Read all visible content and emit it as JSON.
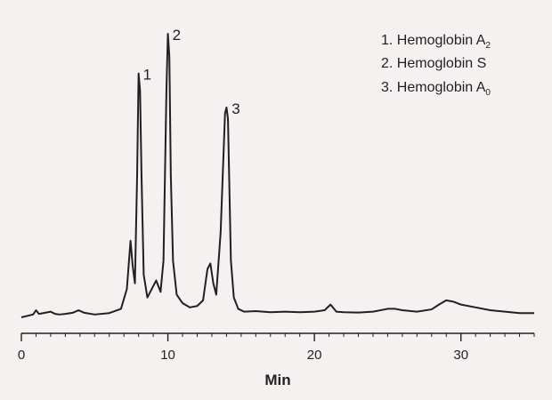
{
  "chart_data": {
    "type": "line",
    "title": "",
    "xlabel": "Min",
    "ylabel": "",
    "xlim": [
      0,
      35
    ],
    "ylim": [
      0,
      1
    ],
    "x_ticks": [
      0,
      10,
      20,
      30
    ],
    "x_tick_labels": [
      "0",
      "10",
      "20",
      "30"
    ],
    "grid": false,
    "line_color": "#231f20",
    "background": "#f3f2f1",
    "series": [
      {
        "x": [
          0.0,
          0.8,
          1.0,
          1.2,
          1.5,
          2.0,
          2.3,
          2.6,
          3.0,
          3.5,
          3.9,
          4.3,
          5.0,
          6.0,
          6.8,
          7.2,
          7.45,
          7.6,
          7.75,
          7.9,
          8.0,
          8.1,
          8.2,
          8.35,
          8.6,
          8.9,
          9.2,
          9.5,
          9.7,
          9.9,
          10.0,
          10.1,
          10.2,
          10.35,
          10.6,
          11.0,
          11.5,
          12.0,
          12.4,
          12.7,
          12.9,
          13.1,
          13.3,
          13.6,
          13.9,
          14.0,
          14.1,
          14.2,
          14.3,
          14.5,
          14.8,
          15.2,
          16.0,
          17.0,
          18.0,
          19.0,
          20.0,
          20.7,
          21.1,
          21.5,
          22.0,
          23.0,
          24.0,
          25.0,
          25.5,
          26.0,
          27.0,
          28.0,
          28.5,
          29.0,
          29.5,
          30.0,
          31.0,
          32.0,
          33.0,
          34.0,
          35.0
        ],
        "y": [
          0.0,
          0.01,
          0.025,
          0.012,
          0.015,
          0.02,
          0.012,
          0.01,
          0.012,
          0.016,
          0.025,
          0.016,
          0.01,
          0.015,
          0.03,
          0.1,
          0.27,
          0.18,
          0.12,
          0.5,
          0.86,
          0.8,
          0.5,
          0.15,
          0.07,
          0.1,
          0.13,
          0.09,
          0.2,
          0.8,
          1.0,
          0.92,
          0.5,
          0.2,
          0.08,
          0.05,
          0.035,
          0.04,
          0.06,
          0.17,
          0.19,
          0.12,
          0.08,
          0.3,
          0.72,
          0.74,
          0.7,
          0.45,
          0.2,
          0.07,
          0.03,
          0.02,
          0.022,
          0.018,
          0.02,
          0.018,
          0.02,
          0.025,
          0.045,
          0.02,
          0.018,
          0.017,
          0.02,
          0.03,
          0.03,
          0.025,
          0.02,
          0.028,
          0.045,
          0.06,
          0.055,
          0.045,
          0.035,
          0.025,
          0.02,
          0.015,
          0.015
        ]
      }
    ],
    "peak_labels": [
      {
        "text": "1",
        "x": 8.0,
        "y": 0.86
      },
      {
        "text": "2",
        "x": 10.0,
        "y": 1.0
      },
      {
        "text": "3",
        "x": 14.05,
        "y": 0.74
      }
    ],
    "legend": [
      {
        "text": "1. Hemoglobin A",
        "sub": "2"
      },
      {
        "text": "2. Hemoglobin S",
        "sub": ""
      },
      {
        "text": "3. Hemoglobin A",
        "sub": "0"
      }
    ]
  }
}
